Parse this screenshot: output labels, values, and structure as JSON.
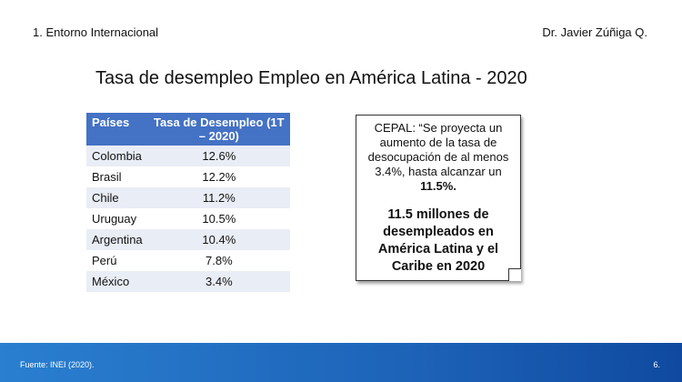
{
  "header": {
    "section": "1. Entorno Internacional",
    "author": "Dr. Javier Zúñiga Q."
  },
  "title": "Tasa de desempleo Empleo en América Latina - 2020",
  "table": {
    "headers": [
      "Países",
      "Tasa de Desempleo (1T – 2020)"
    ],
    "rows": [
      [
        "Colombia",
        "12.6%"
      ],
      [
        "Brasil",
        "12.2%"
      ],
      [
        "Chile",
        "11.2%"
      ],
      [
        "Uruguay",
        "10.5%"
      ],
      [
        "Argentina",
        "10.4%"
      ],
      [
        "Perú",
        "7.8%"
      ],
      [
        "México",
        "3.4%"
      ]
    ]
  },
  "note": {
    "quote": "CEPAL: “Se proyecta un aumento de la tasa de desocupación de al menos 3.4%, hasta alcanzar un",
    "quote_bold": "11.5%.",
    "highlight": "11.5 millones de desempleados en América Latina y el Caribe en 2020"
  },
  "footer": {
    "source": "Fuente: INEI (2020).",
    "page": "6."
  }
}
